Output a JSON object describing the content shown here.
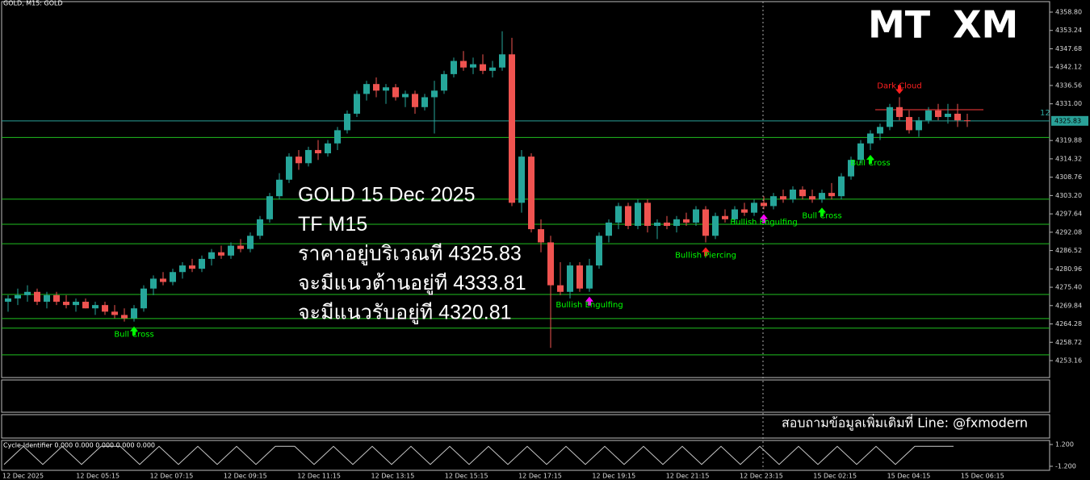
{
  "chart_data": {
    "type": "candlestick",
    "header": "GOLD, M15:  GOLD",
    "logo": [
      "MT",
      "XM"
    ],
    "ylim": [
      4248.27,
      4361.98
    ],
    "yticks": [
      {
        "value": 4358.8,
        "label": "4358.80"
      },
      4353.24,
      4347.68,
      4342.12,
      4336.56,
      {
        "value": 4331,
        "label": "4331.00"
      },
      4319.88,
      4314.32,
      4308.76,
      {
        "value": 4303.2,
        "label": "4303.20"
      },
      4297.64,
      4292.08,
      4286.52,
      4280.96,
      {
        "value": 4275.4,
        "label": "4275.40"
      },
      4269.84,
      4264.28,
      4258.72,
      4253.16
    ],
    "last_price": 4325.83,
    "corner_label": "12",
    "bull_color": "#26a69a",
    "bear_color": "#ef5350",
    "candles": [
      [
        4271,
        4273,
        4268,
        4272
      ],
      [
        4272,
        4275,
        4270,
        4273
      ],
      [
        4273,
        4276,
        4271,
        4274
      ],
      [
        4274,
        4275,
        4270,
        4271
      ],
      [
        4271,
        4274,
        4269,
        4273
      ],
      [
        4273,
        4274,
        4270,
        4271
      ],
      [
        4271,
        4273,
        4269,
        4270
      ],
      [
        4270,
        4272,
        4268,
        4271
      ],
      [
        4271,
        4272,
        4269,
        4269
      ],
      [
        4269,
        4271,
        4267,
        4270
      ],
      [
        4270,
        4271,
        4267,
        4268
      ],
      [
        4268,
        4270,
        4266,
        4267
      ],
      [
        4267,
        4269,
        4265,
        4266
      ],
      [
        4266,
        4270,
        4265,
        4269
      ],
      [
        4269,
        4276,
        4268,
        4275
      ],
      [
        4275,
        4279,
        4273,
        4278
      ],
      [
        4278,
        4280,
        4276,
        4277
      ],
      [
        4277,
        4281,
        4276,
        4280
      ],
      [
        4280,
        4283,
        4278,
        4282
      ],
      [
        4282,
        4284,
        4280,
        4281
      ],
      [
        4281,
        4285,
        4280,
        4284
      ],
      [
        4284,
        4287,
        4282,
        4286
      ],
      [
        4286,
        4288,
        4284,
        4285
      ],
      [
        4285,
        4289,
        4284,
        4288
      ],
      [
        4288,
        4290,
        4286,
        4287
      ],
      [
        4287,
        4292,
        4286,
        4291
      ],
      [
        4291,
        4297,
        4290,
        4296
      ],
      [
        4296,
        4304,
        4295,
        4303
      ],
      [
        4303,
        4310,
        4302,
        4308
      ],
      [
        4308,
        4316,
        4307,
        4315
      ],
      [
        4315,
        4317,
        4311,
        4313
      ],
      [
        4313,
        4318,
        4312,
        4317
      ],
      [
        4317,
        4320,
        4314,
        4316
      ],
      [
        4316,
        4320,
        4315,
        4319
      ],
      [
        4319,
        4324,
        4317,
        4323
      ],
      [
        4323,
        4329,
        4322,
        4328
      ],
      [
        4328,
        4335,
        4327,
        4334
      ],
      [
        4334,
        4338,
        4332,
        4337
      ],
      [
        4337,
        4339,
        4333,
        4335
      ],
      [
        4335,
        4337,
        4331,
        4336
      ],
      [
        4336,
        4337,
        4332,
        4333
      ],
      [
        4333,
        4335,
        4330,
        4334
      ],
      [
        4334,
        4335,
        4328,
        4330
      ],
      [
        4330,
        4334,
        4329,
        4333
      ],
      [
        4333,
        4338,
        4322,
        4335
      ],
      [
        4335,
        4341,
        4334,
        4340
      ],
      [
        4340,
        4345,
        4339,
        4344
      ],
      [
        4344,
        4347,
        4341,
        4342
      ],
      [
        4342,
        4345,
        4340,
        4343
      ],
      [
        4343,
        4346,
        4340,
        4341
      ],
      [
        4341,
        4344,
        4339,
        4342
      ],
      [
        4342,
        4353,
        4341,
        4346
      ],
      [
        4346,
        4351,
        4300,
        4301
      ],
      [
        4301,
        4317,
        4298,
        4315
      ],
      [
        4315,
        4316,
        4292,
        4293
      ],
      [
        4293,
        4296,
        4286,
        4289
      ],
      [
        4289,
        4291,
        4257,
        4276
      ],
      [
        4276,
        4283,
        4273,
        4274
      ],
      [
        4274,
        4283,
        4272,
        4282
      ],
      [
        4282,
        4283,
        4274,
        4275
      ],
      [
        4275,
        4284,
        4274,
        4282
      ],
      [
        4282,
        4292,
        4281,
        4291
      ],
      [
        4291,
        4296,
        4289,
        4295
      ],
      [
        4295,
        4301,
        4293,
        4300
      ],
      [
        4300,
        4301,
        4293,
        4294
      ],
      [
        4294,
        4302,
        4293,
        4301
      ],
      [
        4301,
        4302,
        4292,
        4294
      ],
      [
        4294,
        4296,
        4290,
        4295
      ],
      [
        4295,
        4297,
        4293,
        4294
      ],
      [
        4294,
        4297,
        4292,
        4296
      ],
      [
        4296,
        4298,
        4294,
        4295
      ],
      [
        4295,
        4300,
        4294,
        4299
      ],
      [
        4299,
        4300,
        4289,
        4291
      ],
      [
        4291,
        4298,
        4290,
        4297
      ],
      [
        4297,
        4299,
        4295,
        4296
      ],
      [
        4296,
        4300,
        4295,
        4299
      ],
      [
        4299,
        4301,
        4297,
        4298
      ],
      [
        4298,
        4302,
        4297,
        4301
      ],
      [
        4301,
        4303,
        4299,
        4300
      ],
      [
        4300,
        4304,
        4299,
        4303
      ],
      [
        4303,
        4305,
        4301,
        4302
      ],
      [
        4302,
        4306,
        4301,
        4305
      ],
      [
        4305,
        4306,
        4302,
        4303
      ],
      [
        4303,
        4305,
        4301,
        4302
      ],
      [
        4302,
        4305,
        4301,
        4304
      ],
      [
        4304,
        4307,
        4302,
        4303
      ],
      [
        4303,
        4310,
        4302,
        4309
      ],
      [
        4309,
        4315,
        4308,
        4314
      ],
      [
        4314,
        4320,
        4313,
        4319
      ],
      [
        4319,
        4323,
        4317,
        4322
      ],
      [
        4322,
        4325,
        4320,
        4324
      ],
      [
        4324,
        4331,
        4323,
        4330
      ],
      [
        4330,
        4333,
        4326,
        4327
      ],
      [
        4327,
        4329,
        4322,
        4323
      ],
      [
        4323,
        4327,
        4321,
        4326
      ],
      [
        4326,
        4330,
        4325,
        4329
      ],
      [
        4329,
        4331,
        4326,
        4327
      ],
      [
        4327,
        4331,
        4325,
        4328
      ],
      [
        4328,
        4331,
        4324,
        4326
      ],
      [
        4326,
        4328,
        4324,
        4325.83
      ]
    ],
    "levels": [
      {
        "value": 4329.2,
        "color": "#ff3b3b",
        "from": 90
      },
      {
        "value": 4325.83,
        "color": "#2aa198",
        "from": 0
      },
      {
        "value": 4320.81,
        "color": "#1fbf1f",
        "from": 0
      },
      {
        "value": 4302.1,
        "color": "#1fbf1f",
        "from": 0
      },
      {
        "value": 4294.5,
        "color": "#1fbf1f",
        "from": 0
      },
      {
        "value": 4288.6,
        "color": "#1fbf1f",
        "from": 0
      },
      {
        "value": 4273.2,
        "color": "#1fbf1f",
        "from": 0
      },
      {
        "value": 4265.9,
        "color": "#1fbf1f",
        "from": 0
      },
      {
        "value": 4263.0,
        "color": "#1fbf1f",
        "from": 0
      },
      {
        "value": 4254.9,
        "color": "#1fbf1f",
        "from": 0
      }
    ],
    "patterns": [
      {
        "text": "Bull Cross",
        "candle": 13,
        "color": "#00ff00",
        "arrow": "#00ff00",
        "side": "below"
      },
      {
        "text": "Bullish Engulfing",
        "candle": 60,
        "color": "#00ff00",
        "arrow": "#ff00ff",
        "side": "below"
      },
      {
        "text": "Bullish Piercing",
        "candle": 72,
        "color": "#00ff00",
        "arrow": "#ff2020",
        "side": "below"
      },
      {
        "text": "Bullish Engulfing",
        "candle": 78,
        "color": "#00ff00",
        "arrow": "#ff00ff",
        "side": "below"
      },
      {
        "text": "Bull Cross",
        "candle": 84,
        "color": "#00ff00",
        "arrow": "#00ff00",
        "side": "below"
      },
      {
        "text": "Bull Cross",
        "candle": 89,
        "color": "#00ff00",
        "arrow": "#00ff00",
        "side": "below"
      },
      {
        "text": "Dark Cloud",
        "candle": 92,
        "color": "#ff2020",
        "arrow": "#ff2020",
        "side": "above"
      }
    ],
    "overlay": [
      "GOLD 15 Dec 2025",
      "TF M15",
      "ราคาอยู่บริเวณที 4325.83",
      "จะมีแนวต้านอยู่ที 4333.81",
      "จะมีแนวรับอยู่ที 4320.81"
    ],
    "footer": "สอบถามข้อมูลเพิ่มเติมที่ Line: @fxmodern",
    "x_labels": [
      "12 Dec 2025",
      "12 Dec 05:15",
      "12 Dec 07:15",
      "12 Dec 09:15",
      "12 Dec 11:15",
      "12 Dec 13:15",
      "12 Dec 15:15",
      "12 Dec 17:15",
      "12 Dec 19:15",
      "12 Dec 21:15",
      "12 Dec 23:15",
      "15 Dec 02:15",
      "15 Dec 04:15",
      "15 Dec 06:15"
    ],
    "cycle": {
      "label": "Cycle-Identifier 0.000 0.000 0.000 0.000 0.000",
      "ylim": [
        -1.2,
        1.2
      ],
      "yticks": [
        {
          "value": 1.2,
          "label": "1.200"
        },
        {
          "value": -1.2,
          "label": "-1.200"
        }
      ],
      "values": [
        -1,
        1,
        -1,
        1,
        -1,
        1,
        1,
        -1,
        1,
        -1,
        1,
        -1,
        1,
        -1,
        1,
        1,
        -1,
        1,
        -1,
        1,
        -1,
        1,
        -1,
        1,
        -1,
        1,
        -1,
        1,
        -1,
        1,
        -1,
        1,
        -1,
        1,
        -1,
        1,
        -1,
        1,
        -1,
        1,
        -1,
        1,
        -1,
        1,
        -1,
        1,
        -1,
        1,
        1,
        1
      ]
    }
  }
}
